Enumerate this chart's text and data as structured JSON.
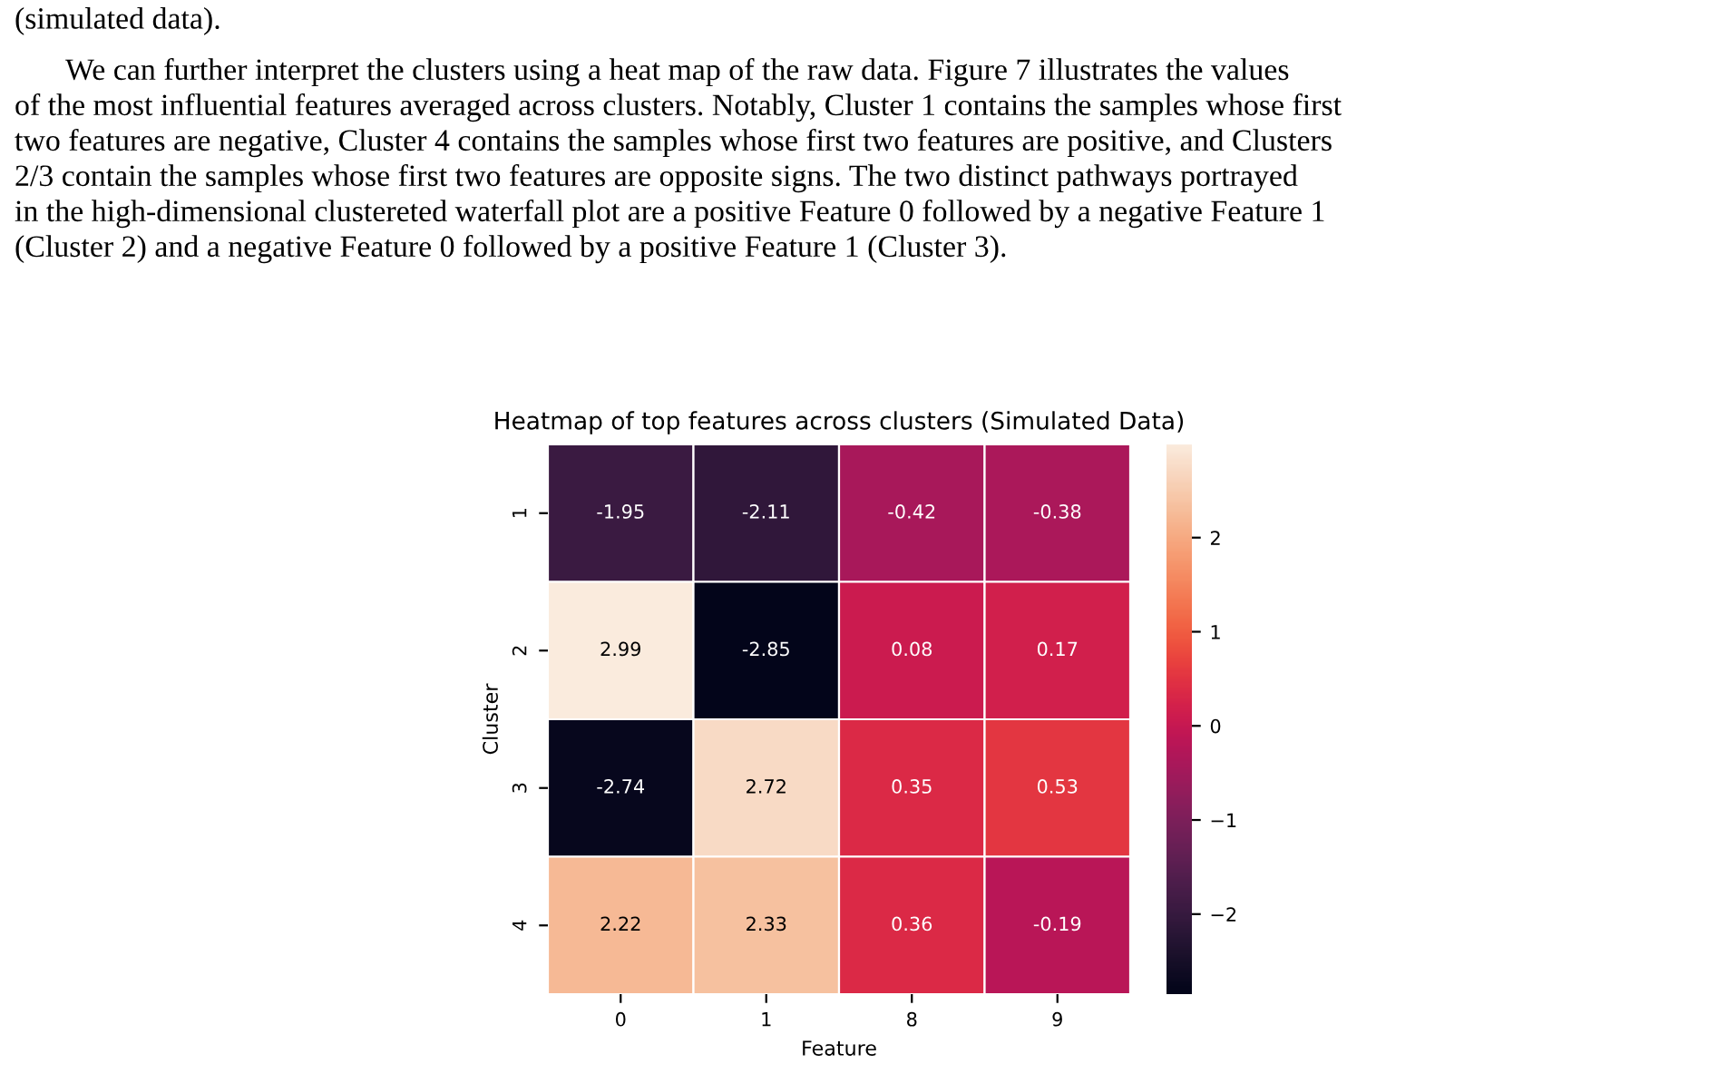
{
  "chart_data": {
    "type": "heatmap",
    "title": "Heatmap of top features across clusters (Simulated Data)",
    "xlabel": "Feature",
    "ylabel": "Cluster",
    "categories": [
      "0",
      "1",
      "8",
      "9"
    ],
    "y_categories": [
      "1",
      "2",
      "3",
      "4"
    ],
    "cells": [
      [
        -1.95,
        -2.11,
        -0.42,
        -0.38
      ],
      [
        2.99,
        -2.85,
        0.08,
        0.17
      ],
      [
        -2.74,
        2.72,
        0.35,
        0.53
      ],
      [
        2.22,
        2.33,
        0.36,
        -0.19
      ]
    ],
    "data_labels": true,
    "clim": [
      -2.85,
      2.99
    ],
    "cticks": [
      {
        "value": -2,
        "label": "−2"
      },
      {
        "value": -1,
        "label": "−1"
      },
      0,
      1,
      2
    ],
    "annotations": [
      "(simulated data).",
      "We can further interpret the clusters using a heat map of the raw data. Figure 7 illustrates the values",
      "of the most influential features averaged across clusters. Notably, Cluster 1 contains the samples whose first",
      "two features are negative, Cluster 4 contains the samples whose first two features are positive, and Clusters",
      "2/3 contain the samples whose first two features are opposite signs. The two distinct pathways portrayed",
      "in the high-dimensional clustereted waterfall plot are a positive Feature 0 followed by a negative Feature 1",
      "(Cluster 2) and a negative Feature 0 followed by a positive Feature 1 (Cluster 3)."
    ]
  }
}
